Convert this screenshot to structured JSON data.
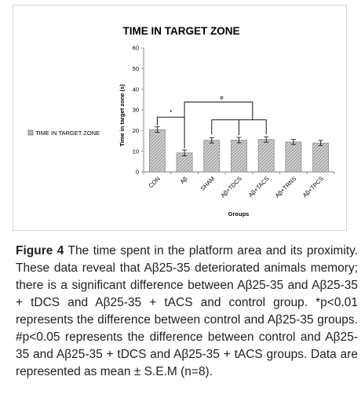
{
  "chart_data": {
    "type": "bar",
    "title": "TIME IN TARGET ZONE",
    "xlabel": "Groups",
    "ylabel": "Time in target zone (s)",
    "ylim": [
      0,
      60
    ],
    "yticks": [
      "0",
      "10",
      "20",
      "30",
      "40",
      "50",
      "60"
    ],
    "categories": [
      "CON",
      "Aβ",
      "SHAM",
      "Aβ+TDCS",
      "Aβ+TACS",
      "Aβ+TRNS",
      "Aβ+TPCS"
    ],
    "series": [
      {
        "name": "TIME IN TARGET ZONE",
        "values": [
          20.5,
          9.2,
          15.3,
          15.4,
          15.7,
          14.5,
          14.0
        ],
        "errors": [
          1.3,
          1.4,
          1.3,
          1.3,
          1.3,
          1.2,
          1.2
        ]
      }
    ],
    "grid": false,
    "legend_position": "left",
    "annotations": [
      {
        "text": "*",
        "between": [
          "CON",
          "Aβ"
        ]
      },
      {
        "text": "#",
        "between": [
          "Aβ",
          "Aβ+TDCS",
          "Aβ+TACS"
        ]
      }
    ],
    "colors": {
      "bar_fill": "#cfcfcf",
      "bar_pattern": "#8a8a8a",
      "axis": "#7f7f7f",
      "text": "#000000"
    }
  },
  "caption": {
    "label": "Figure 4",
    "text": " The time spent in the platform area and its proximity. These data reveal that Aβ25-35 deteriorated animals memory; there is a significant difference between Aβ25-35 and Aβ25-35 + tDCS and Aβ25-35 + tACS and control group. *p<0.01 represents the difference between control and Aβ25-35 groups. #p<0.05 represents the difference between control and Aβ25-35 and Aβ25-35 + tDCS and Aβ25-35 + tACS groups. Data are represented as mean ± S.E.M (n=8)."
  }
}
